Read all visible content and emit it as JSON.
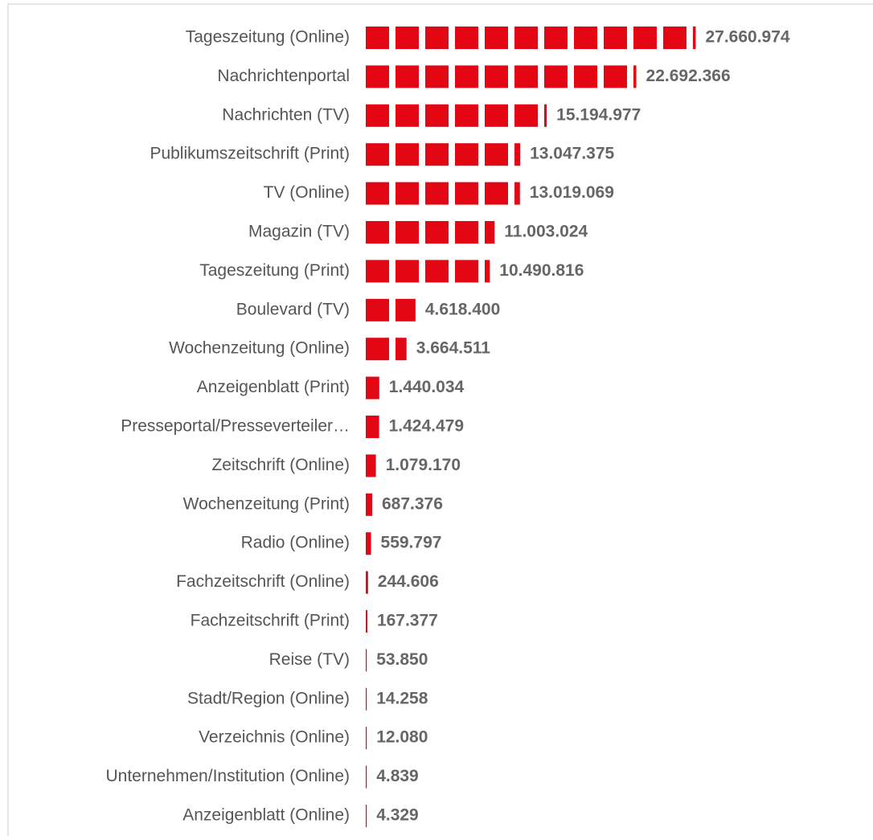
{
  "chart_data": {
    "type": "pictogram-bar",
    "color": "#e30613",
    "categories": [
      "Tageszeitung (Online)",
      "Nachrichtenportal",
      "Nachrichten (TV)",
      "Publikumszeitschrift (Print)",
      "TV (Online)",
      "Magazin (TV)",
      "Tageszeitung (Print)",
      "Boulevard (TV)",
      "Wochenzeitung (Online)",
      "Anzeigenblatt (Print)",
      "Presseportal/Presseverteiler…",
      "Zeitschrift (Online)",
      "Wochenzeitung (Print)",
      "Radio (Online)",
      "Fachzeitschrift (Online)",
      "Fachzeitschrift (Print)",
      "Reise (TV)",
      "Stadt/Region (Online)",
      "Verzeichnis (Online)",
      "Unternehmen/Institution (Online)",
      "Anzeigenblatt (Online)"
    ],
    "values": [
      27660974,
      22692366,
      15194977,
      13047375,
      13019069,
      11003024,
      10490816,
      4618400,
      3664511,
      1440034,
      1424479,
      1079170,
      687376,
      559797,
      244606,
      167377,
      53850,
      14258,
      12080,
      4839,
      4329
    ],
    "value_labels": [
      "27.660.974",
      "22.692.366",
      "15.194.977",
      "13.047.375",
      "13.019.069",
      "11.003.024",
      "10.490.816",
      "4.618.400",
      "3.664.511",
      "1.440.034",
      "1.424.479",
      "1.079.170",
      "687.376",
      "559.797",
      "244.606",
      "167.377",
      "53.850",
      "14.258",
      "12.080",
      "4.839",
      "4.329"
    ]
  }
}
